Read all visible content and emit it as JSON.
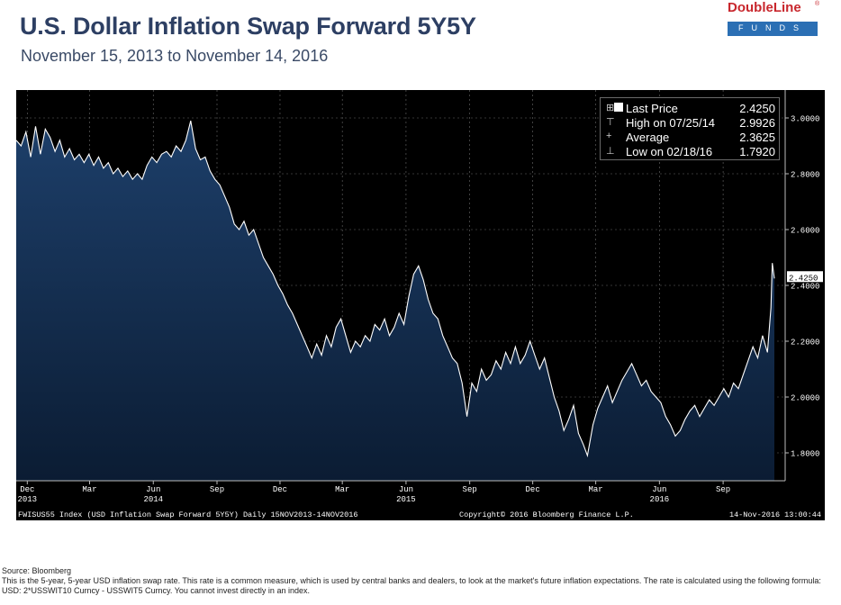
{
  "title": "U.S. Dollar Inflation Swap Forward 5Y5Y",
  "subtitle": "November 15, 2013 to November 14, 2016",
  "logo": {
    "name": "DoubleLine",
    "reg": "®",
    "funds": "FUNDS"
  },
  "legend": [
    {
      "symbol": "⊞",
      "label": "Last Price",
      "value": "2.4250"
    },
    {
      "symbol": "⊤",
      "label": "High on 07/25/14",
      "value": "2.9926"
    },
    {
      "symbol": "+",
      "label": "Average",
      "value": "2.3625"
    },
    {
      "symbol": "⊥",
      "label": "Low on 02/18/16",
      "value": "1.7920"
    }
  ],
  "chart_footer": {
    "left": "FWISUS55 Index (USD Inflation Swap Forward 5Y5Y) Daily 15NOV2013-14NOV2016",
    "center": "Copyright© 2016 Bloomberg Finance L.P.",
    "right": "14-Nov-2016 13:00:44"
  },
  "footnote": {
    "source": "Source: Bloomberg",
    "text": "This is the 5-year, 5-year USD inflation swap rate.  This rate is a common measure, which is used by central banks and dealers, to look at the market's future inflation expectations.  The rate is calculated using the following formula: USD: 2*USSWIT10 Curncy - USSWIT5 Curncy. You cannot invest directly in an index."
  },
  "colors": {
    "background": "#000000",
    "area_top": "#1d3f6a",
    "area_bottom": "#0b1c33",
    "line": "#ffffff",
    "last_price_tag": "#ffffff"
  },
  "chart_data": {
    "type": "area",
    "title": "U.S. Dollar Inflation Swap Forward 5Y5Y",
    "xlabel": "",
    "ylabel": "",
    "ylim": [
      1.7,
      3.1
    ],
    "xlim": [
      "2013-11-15",
      "2016-11-14"
    ],
    "grid": true,
    "legend_position": "top-right",
    "last_price_label": "2.4250",
    "y_ticks": [
      {
        "value": 3.0,
        "label": "3.0000"
      },
      {
        "value": 2.8,
        "label": "2.8000"
      },
      {
        "value": 2.6,
        "label": "2.6000"
      },
      {
        "value": 2.4,
        "label": "2.4000"
      },
      {
        "value": 2.2,
        "label": "2.2000"
      },
      {
        "value": 2.0,
        "label": "2.0000"
      },
      {
        "value": 1.8,
        "label": "1.8000"
      }
    ],
    "x_ticks": [
      {
        "date": "2013-12-01",
        "label": "Dec",
        "year": "2013"
      },
      {
        "date": "2014-03-01",
        "label": "Mar",
        "year": ""
      },
      {
        "date": "2014-06-01",
        "label": "Jun",
        "year": "2014"
      },
      {
        "date": "2014-09-01",
        "label": "Sep",
        "year": ""
      },
      {
        "date": "2014-12-01",
        "label": "Dec",
        "year": ""
      },
      {
        "date": "2015-03-01",
        "label": "Mar",
        "year": ""
      },
      {
        "date": "2015-06-01",
        "label": "Jun",
        "year": "2015"
      },
      {
        "date": "2015-09-01",
        "label": "Sep",
        "year": ""
      },
      {
        "date": "2015-12-01",
        "label": "Dec",
        "year": ""
      },
      {
        "date": "2016-03-01",
        "label": "Mar",
        "year": ""
      },
      {
        "date": "2016-06-01",
        "label": "Jun",
        "year": "2016"
      },
      {
        "date": "2016-09-01",
        "label": "Sep",
        "year": ""
      }
    ],
    "series": [
      {
        "points": [
          [
            "2013-11-15",
            2.92
          ],
          [
            "2013-11-22",
            2.9
          ],
          [
            "2013-11-29",
            2.95
          ],
          [
            "2013-12-06",
            2.86
          ],
          [
            "2013-12-13",
            2.97
          ],
          [
            "2013-12-20",
            2.87
          ],
          [
            "2013-12-27",
            2.96
          ],
          [
            "2014-01-03",
            2.93
          ],
          [
            "2014-01-10",
            2.88
          ],
          [
            "2014-01-17",
            2.92
          ],
          [
            "2014-01-24",
            2.86
          ],
          [
            "2014-01-31",
            2.89
          ],
          [
            "2014-02-07",
            2.85
          ],
          [
            "2014-02-14",
            2.87
          ],
          [
            "2014-02-21",
            2.84
          ],
          [
            "2014-02-28",
            2.87
          ],
          [
            "2014-03-07",
            2.83
          ],
          [
            "2014-03-14",
            2.86
          ],
          [
            "2014-03-21",
            2.82
          ],
          [
            "2014-03-28",
            2.84
          ],
          [
            "2014-04-04",
            2.8
          ],
          [
            "2014-04-11",
            2.82
          ],
          [
            "2014-04-18",
            2.79
          ],
          [
            "2014-04-25",
            2.81
          ],
          [
            "2014-05-02",
            2.78
          ],
          [
            "2014-05-09",
            2.8
          ],
          [
            "2014-05-16",
            2.78
          ],
          [
            "2014-05-23",
            2.83
          ],
          [
            "2014-05-30",
            2.86
          ],
          [
            "2014-06-06",
            2.84
          ],
          [
            "2014-06-13",
            2.87
          ],
          [
            "2014-06-20",
            2.88
          ],
          [
            "2014-06-27",
            2.86
          ],
          [
            "2014-07-04",
            2.9
          ],
          [
            "2014-07-11",
            2.88
          ],
          [
            "2014-07-18",
            2.92
          ],
          [
            "2014-07-25",
            2.99
          ],
          [
            "2014-08-01",
            2.89
          ],
          [
            "2014-08-08",
            2.85
          ],
          [
            "2014-08-15",
            2.86
          ],
          [
            "2014-08-22",
            2.81
          ],
          [
            "2014-08-29",
            2.78
          ],
          [
            "2014-09-05",
            2.76
          ],
          [
            "2014-09-12",
            2.72
          ],
          [
            "2014-09-19",
            2.68
          ],
          [
            "2014-09-26",
            2.62
          ],
          [
            "2014-10-03",
            2.6
          ],
          [
            "2014-10-10",
            2.63
          ],
          [
            "2014-10-17",
            2.58
          ],
          [
            "2014-10-24",
            2.6
          ],
          [
            "2014-10-31",
            2.55
          ],
          [
            "2014-11-07",
            2.5
          ],
          [
            "2014-11-14",
            2.47
          ],
          [
            "2014-11-21",
            2.44
          ],
          [
            "2014-11-28",
            2.4
          ],
          [
            "2014-12-05",
            2.37
          ],
          [
            "2014-12-12",
            2.33
          ],
          [
            "2014-12-19",
            2.3
          ],
          [
            "2014-12-26",
            2.26
          ],
          [
            "2015-01-02",
            2.22
          ],
          [
            "2015-01-09",
            2.18
          ],
          [
            "2015-01-16",
            2.14
          ],
          [
            "2015-01-23",
            2.19
          ],
          [
            "2015-01-30",
            2.15
          ],
          [
            "2015-02-06",
            2.22
          ],
          [
            "2015-02-13",
            2.18
          ],
          [
            "2015-02-20",
            2.25
          ],
          [
            "2015-02-27",
            2.28
          ],
          [
            "2015-03-06",
            2.22
          ],
          [
            "2015-03-13",
            2.16
          ],
          [
            "2015-03-20",
            2.2
          ],
          [
            "2015-03-27",
            2.18
          ],
          [
            "2015-04-03",
            2.22
          ],
          [
            "2015-04-10",
            2.2
          ],
          [
            "2015-04-17",
            2.26
          ],
          [
            "2015-04-24",
            2.24
          ],
          [
            "2015-05-01",
            2.28
          ],
          [
            "2015-05-08",
            2.22
          ],
          [
            "2015-05-15",
            2.25
          ],
          [
            "2015-05-22",
            2.3
          ],
          [
            "2015-05-29",
            2.26
          ],
          [
            "2015-06-05",
            2.36
          ],
          [
            "2015-06-12",
            2.44
          ],
          [
            "2015-06-19",
            2.47
          ],
          [
            "2015-06-26",
            2.42
          ],
          [
            "2015-07-03",
            2.35
          ],
          [
            "2015-07-10",
            2.3
          ],
          [
            "2015-07-17",
            2.28
          ],
          [
            "2015-07-24",
            2.22
          ],
          [
            "2015-07-31",
            2.18
          ],
          [
            "2015-08-07",
            2.14
          ],
          [
            "2015-08-14",
            2.12
          ],
          [
            "2015-08-21",
            2.05
          ],
          [
            "2015-08-28",
            1.93
          ],
          [
            "2015-09-04",
            2.05
          ],
          [
            "2015-09-11",
            2.02
          ],
          [
            "2015-09-18",
            2.1
          ],
          [
            "2015-09-25",
            2.06
          ],
          [
            "2015-10-02",
            2.08
          ],
          [
            "2015-10-09",
            2.13
          ],
          [
            "2015-10-16",
            2.1
          ],
          [
            "2015-10-23",
            2.16
          ],
          [
            "2015-10-30",
            2.12
          ],
          [
            "2015-11-06",
            2.18
          ],
          [
            "2015-11-13",
            2.12
          ],
          [
            "2015-11-20",
            2.15
          ],
          [
            "2015-11-27",
            2.2
          ],
          [
            "2015-12-04",
            2.15
          ],
          [
            "2015-12-11",
            2.1
          ],
          [
            "2015-12-18",
            2.14
          ],
          [
            "2015-12-25",
            2.07
          ],
          [
            "2016-01-01",
            2.0
          ],
          [
            "2016-01-08",
            1.95
          ],
          [
            "2016-01-15",
            1.88
          ],
          [
            "2016-01-22",
            1.92
          ],
          [
            "2016-01-29",
            1.97
          ],
          [
            "2016-02-05",
            1.87
          ],
          [
            "2016-02-12",
            1.83
          ],
          [
            "2016-02-18",
            1.79
          ],
          [
            "2016-02-26",
            1.9
          ],
          [
            "2016-03-04",
            1.96
          ],
          [
            "2016-03-11",
            2.0
          ],
          [
            "2016-03-18",
            2.04
          ],
          [
            "2016-03-25",
            1.98
          ],
          [
            "2016-04-01",
            2.02
          ],
          [
            "2016-04-08",
            2.06
          ],
          [
            "2016-04-15",
            2.09
          ],
          [
            "2016-04-22",
            2.12
          ],
          [
            "2016-04-29",
            2.08
          ],
          [
            "2016-05-06",
            2.04
          ],
          [
            "2016-05-13",
            2.06
          ],
          [
            "2016-05-20",
            2.02
          ],
          [
            "2016-05-27",
            2.0
          ],
          [
            "2016-06-03",
            1.98
          ],
          [
            "2016-06-10",
            1.93
          ],
          [
            "2016-06-17",
            1.9
          ],
          [
            "2016-06-24",
            1.86
          ],
          [
            "2016-07-01",
            1.88
          ],
          [
            "2016-07-08",
            1.92
          ],
          [
            "2016-07-15",
            1.95
          ],
          [
            "2016-07-22",
            1.97
          ],
          [
            "2016-07-29",
            1.93
          ],
          [
            "2016-08-05",
            1.96
          ],
          [
            "2016-08-12",
            1.99
          ],
          [
            "2016-08-19",
            1.97
          ],
          [
            "2016-08-26",
            2.0
          ],
          [
            "2016-09-02",
            2.03
          ],
          [
            "2016-09-09",
            2.0
          ],
          [
            "2016-09-16",
            2.05
          ],
          [
            "2016-09-23",
            2.03
          ],
          [
            "2016-09-30",
            2.08
          ],
          [
            "2016-10-07",
            2.13
          ],
          [
            "2016-10-14",
            2.18
          ],
          [
            "2016-10-21",
            2.14
          ],
          [
            "2016-10-28",
            2.22
          ],
          [
            "2016-11-04",
            2.16
          ],
          [
            "2016-11-09",
            2.32
          ],
          [
            "2016-11-11",
            2.48
          ],
          [
            "2016-11-14",
            2.425
          ]
        ]
      }
    ]
  }
}
